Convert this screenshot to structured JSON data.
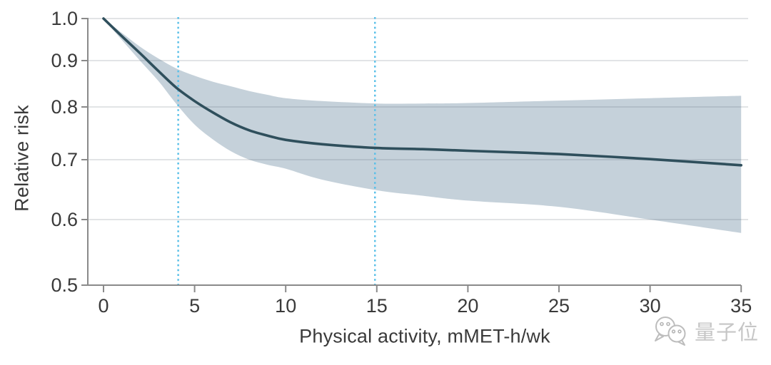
{
  "chart_data": {
    "type": "line",
    "title": "",
    "xlabel": "Physical activity, mMET-h/wk",
    "ylabel": "Relative risk",
    "x_ticks": [
      0,
      5,
      10,
      15,
      20,
      25,
      30,
      35
    ],
    "y_ticks": [
      "1.0",
      "0.9",
      "0.8",
      "0.7",
      "0.6",
      "0.5"
    ],
    "xlim": [
      0,
      35
    ],
    "ylim": [
      0.5,
      1.0
    ],
    "y_scale": "log",
    "grid": "horizontal",
    "legend": "none",
    "reference_lines_x": [
      4.1,
      14.9
    ],
    "x": [
      0,
      1,
      2,
      3,
      4,
      5,
      6,
      7,
      8,
      9,
      10,
      12,
      15,
      17.5,
      20,
      25,
      30,
      35
    ],
    "series": [
      {
        "name": "relative-risk-curve",
        "values": [
          1.0,
          0.957,
          0.917,
          0.877,
          0.84,
          0.812,
          0.789,
          0.769,
          0.754,
          0.744,
          0.736,
          0.728,
          0.721,
          0.719,
          0.716,
          0.71,
          0.701,
          0.69
        ]
      },
      {
        "name": "ci-upper",
        "values": [
          1.0,
          0.965,
          0.932,
          0.905,
          0.882,
          0.866,
          0.853,
          0.843,
          0.833,
          0.825,
          0.818,
          0.812,
          0.807,
          0.807,
          0.808,
          0.813,
          0.818,
          0.823
        ]
      },
      {
        "name": "ci-lower",
        "values": [
          1.0,
          0.948,
          0.9,
          0.855,
          0.806,
          0.765,
          0.737,
          0.715,
          0.7,
          0.691,
          0.684,
          0.665,
          0.647,
          0.638,
          0.63,
          0.62,
          0.6,
          0.578
        ]
      }
    ],
    "colors": {
      "curve": "#2f4f5c",
      "band": "#c5d1da",
      "grid": "#d8dbde",
      "reference_line": "#5bc0e8",
      "axis": "#8a8a8a",
      "tick_label": "#3a3a3a"
    }
  },
  "watermark": {
    "icon": "chat-bubbles-icon",
    "text": "量子位"
  }
}
